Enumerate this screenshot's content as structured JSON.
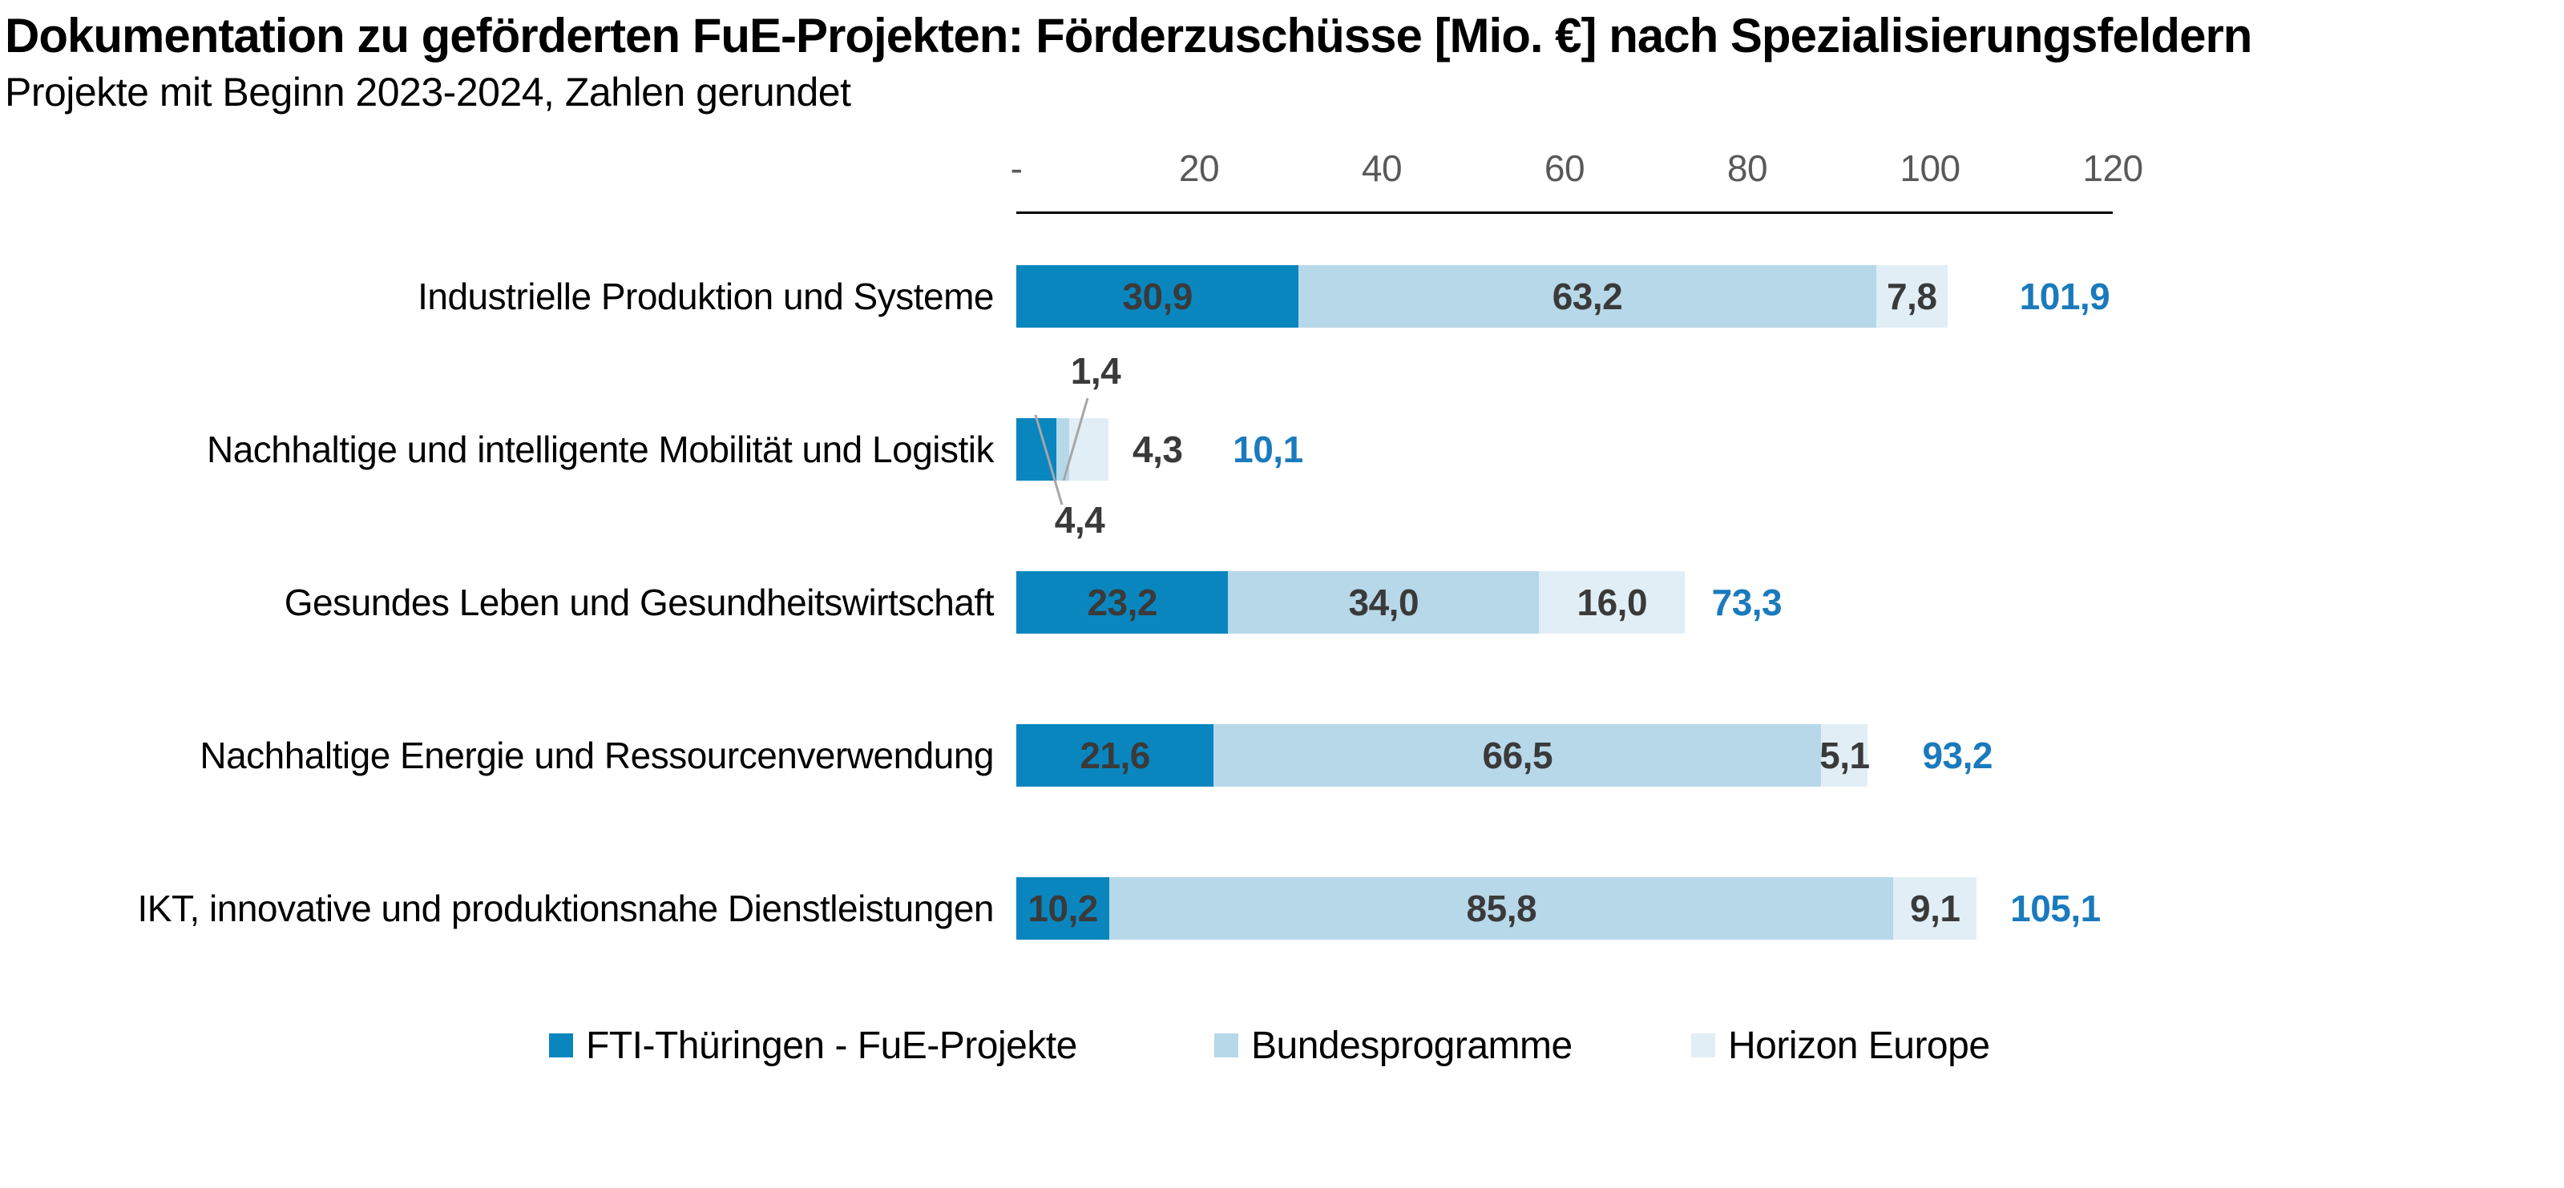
{
  "title": "Dokumentation zu geförderten FuE-Projekten: Förderzuschüsse [Mio. €] nach Spezialisierungsfeldern",
  "subtitle": "Projekte mit Beginn 2023-2024, Zahlen gerundet",
  "colors": {
    "series_fti": "#0A86BF",
    "series_bund": "#B7D8E9",
    "series_horizon": "#E1EEF6",
    "total_label": "#1A7ABC",
    "value_label": "#3A3A3A",
    "tick_label": "#595959",
    "leader_line": "#A6A6A6",
    "axis_line": "#000000",
    "background": "#FFFFFF"
  },
  "chart_data": {
    "type": "bar",
    "variant": "horizontal_stacked",
    "title": "Dokumentation zu geförderten FuE-Projekten: Förderzuschüsse [Mio. €] nach Spezialisierungsfeldern",
    "subtitle": "Projekte mit Beginn 2023-2024, Zahlen gerundet",
    "unit": "Mio. €",
    "categories": [
      "Industrielle Produktion und Systeme",
      "Nachhaltige und intelligente Mobilität und Logistik",
      "Gesundes Leben und Gesundheitswirtschaft",
      "Nachhaltige Energie und Ressourcenverwendung",
      "IKT, innovative und produktionsnahe Dienstleistungen"
    ],
    "series": [
      {
        "name": "FTI-Thüringen - FuE-Projekte",
        "color": "#0A86BF",
        "values": [
          30.9,
          4.4,
          23.2,
          21.6,
          10.2
        ],
        "labels": [
          "30,9",
          "4,4",
          "23,2",
          "21,6",
          "10,2"
        ]
      },
      {
        "name": "Bundesprogramme",
        "color": "#B7D8E9",
        "values": [
          63.2,
          1.4,
          34.0,
          66.5,
          85.8
        ],
        "labels": [
          "63,2",
          "1,4",
          "34,0",
          "66,5",
          "85,8"
        ]
      },
      {
        "name": "Horizon Europe",
        "color": "#E1EEF6",
        "values": [
          7.8,
          4.3,
          16.0,
          5.1,
          9.1
        ],
        "labels": [
          "7,8",
          "4,3",
          "16,0",
          "5,1",
          "9,1"
        ]
      }
    ],
    "totals": {
      "values": [
        101.9,
        10.1,
        73.3,
        93.2,
        105.1
      ],
      "labels": [
        "101,9",
        "10,1",
        "73,3",
        "93,2",
        "105,1"
      ]
    },
    "x_axis": {
      "position": "top",
      "tick_labels": [
        "-",
        "20",
        "40",
        "60",
        "80",
        "100",
        "120"
      ],
      "tick_values": [
        0,
        20,
        40,
        60,
        80,
        100,
        120
      ],
      "range": [
        0,
        120
      ],
      "grid": false
    },
    "legend": {
      "position": "bottom",
      "entries": [
        "FTI-Thüringen - FuE-Projekte",
        "Bundesprogramme",
        "Horizon Europe"
      ]
    }
  }
}
